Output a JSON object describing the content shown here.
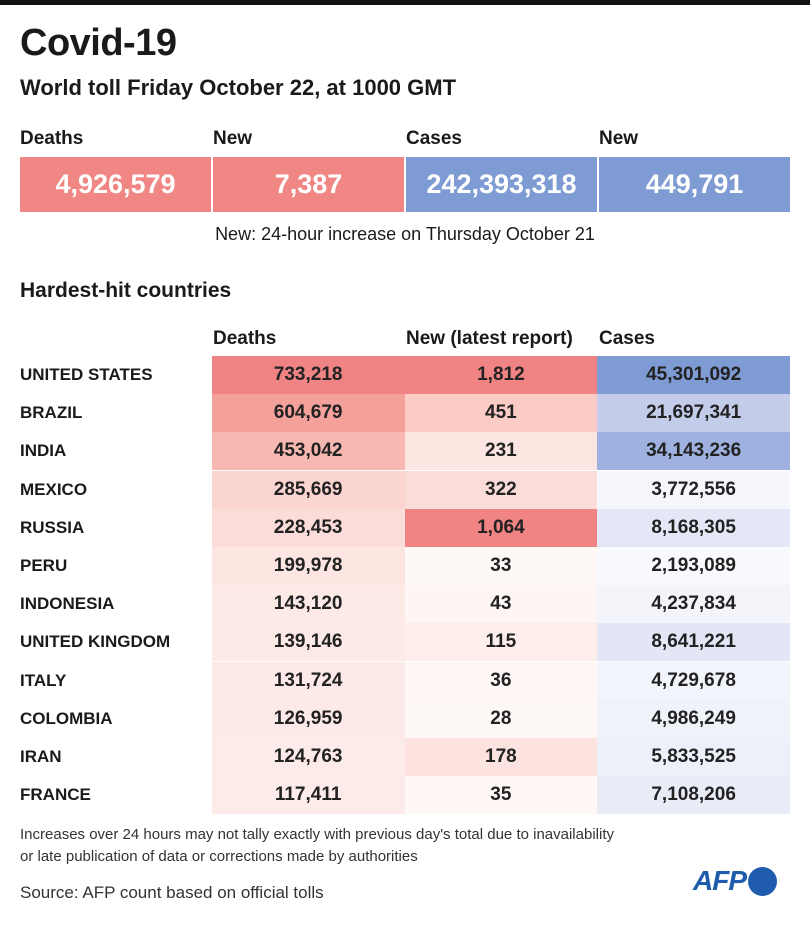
{
  "title": "Covid-19",
  "subtitle": "World toll Friday October 22, at 1000 GMT",
  "kpis": [
    {
      "label": "Deaths",
      "value": "4,926,579",
      "color": "#f08784"
    },
    {
      "label": "New",
      "value": "7,387",
      "color": "#f08784"
    },
    {
      "label": "Cases",
      "value": "242,393,318",
      "color": "#7e9bd3"
    },
    {
      "label": "New",
      "value": "449,791",
      "color": "#7e9bd3"
    }
  ],
  "kpi_note": "New: 24-hour increase on Thursday October 21",
  "section_title": "Hardest-hit countries",
  "columns": [
    "Deaths",
    "New (latest report)",
    "Cases"
  ],
  "rows": [
    {
      "country": "UNITED STATES",
      "deaths": "733,218",
      "new": "1,812",
      "cases": "45,301,092",
      "c": [
        "#f08383",
        "#f08383",
        "#7e9bd3"
      ]
    },
    {
      "country": "BRAZIL",
      "deaths": "604,679",
      "new": "451",
      "cases": "21,697,341",
      "c": [
        "#f4a09b",
        "#fbcbc6",
        "#c3cdea"
      ]
    },
    {
      "country": "INDIA",
      "deaths": "453,042",
      "new": "231",
      "cases": "34,143,236",
      "c": [
        "#f7b8b2",
        "#fde6e2",
        "#9fb1de"
      ]
    },
    {
      "country": "MEXICO",
      "deaths": "285,669",
      "new": "322",
      "cases": "3,772,556",
      "c": [
        "#fbd6d1",
        "#fcdcd8",
        "#f6f7fc"
      ]
    },
    {
      "country": "RUSSIA",
      "deaths": "228,453",
      "new": "1,064",
      "cases": "8,168,305",
      "c": [
        "#fcdcd8",
        "#f08383",
        "#e4e8f6"
      ]
    },
    {
      "country": "PERU",
      "deaths": "199,978",
      "new": "33",
      "cases": "2,193,089",
      "c": [
        "#fde5e2",
        "#fef8f7",
        "#f9fafd"
      ]
    },
    {
      "country": "INDONESIA",
      "deaths": "143,120",
      "new": "43",
      "cases": "4,237,834",
      "c": [
        "#fde9e6",
        "#fef6f5",
        "#f3f5fb"
      ]
    },
    {
      "country": "UNITED KINGDOM",
      "deaths": "139,146",
      "new": "115",
      "cases": "8,641,221",
      "c": [
        "#fde9e6",
        "#fdeeec",
        "#e2e6f5"
      ]
    },
    {
      "country": "ITALY",
      "deaths": "131,724",
      "new": "36",
      "cases": "4,729,678",
      "c": [
        "#fdeae8",
        "#fef7f6",
        "#f2f4fb"
      ]
    },
    {
      "country": "COLOMBIA",
      "deaths": "126,959",
      "new": "28",
      "cases": "4,986,249",
      "c": [
        "#fdeae8",
        "#fef8f7",
        "#f0f2fa"
      ]
    },
    {
      "country": "IRAN",
      "deaths": "124,763",
      "new": "178",
      "cases": "5,833,525",
      "c": [
        "#fdebe9",
        "#fde3df",
        "#edf0f9"
      ]
    },
    {
      "country": "FRANCE",
      "deaths": "117,411",
      "new": "35",
      "cases": "7,108,206",
      "c": [
        "#fdebe9",
        "#fef7f6",
        "#e9ecf7"
      ]
    }
  ],
  "footnote_1": "Increases over 24 hours may not tally exactly with previous day's total due to inavailability",
  "footnote_2": "or late publication of data or corrections made by authorities",
  "source": "Source: AFP count based on official tolls",
  "logo": "AFP"
}
